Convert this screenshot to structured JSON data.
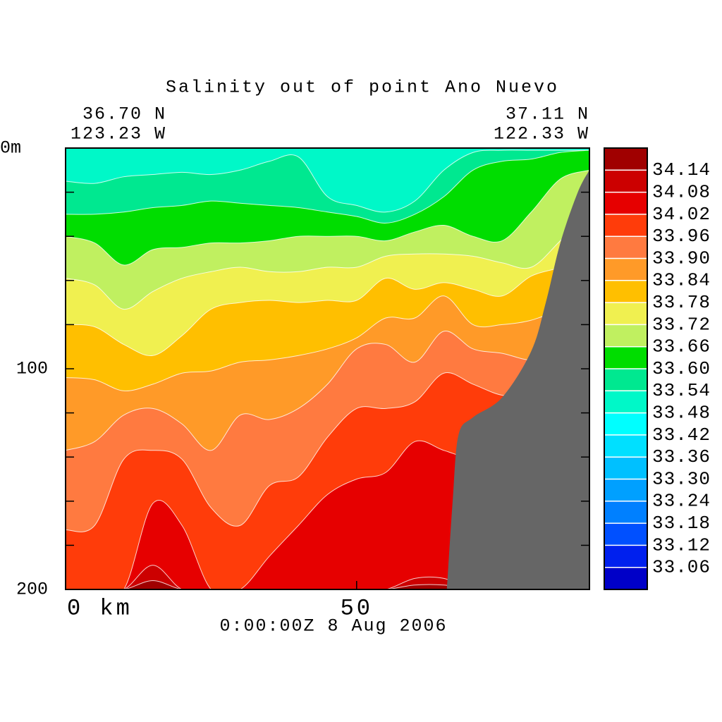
{
  "chart_data": {
    "type": "contour",
    "title": "Salinity out of point Ano Nuevo",
    "corner_labels": {
      "left_lat": "36.70 N",
      "left_lon": "123.23 W",
      "right_lat": "37.11 N",
      "right_lon": "122.33 W"
    },
    "time_label": "0:00:00Z   8 Aug 2006",
    "xlim": [
      0,
      90
    ],
    "xticks": [
      {
        "value": 0,
        "label": "0 km"
      },
      50
    ],
    "ylim": [
      0,
      200
    ],
    "yticks": [
      {
        "value": 0,
        "label": "0m"
      },
      100,
      200
    ],
    "y_minor_ticks": [
      20,
      40,
      60,
      80,
      120,
      140,
      160,
      180
    ],
    "x": [
      0,
      5,
      10,
      15,
      20,
      25,
      30,
      35,
      40,
      45,
      50,
      55,
      60,
      65,
      70,
      75,
      80,
      85,
      90
    ],
    "base_level": 33.48,
    "contours": [
      {
        "level": 33.54,
        "depths": [
          15,
          16,
          13,
          12,
          11,
          12,
          10,
          6,
          4,
          22,
          26,
          29,
          24,
          10,
          2,
          1,
          1,
          1,
          1
        ]
      },
      {
        "level": 33.6,
        "depths": [
          30,
          30,
          29,
          27,
          26,
          24,
          25,
          26,
          27,
          29,
          31,
          34,
          30,
          22,
          10,
          6,
          5,
          2,
          1
        ]
      },
      {
        "level": 33.66,
        "depths": [
          40,
          43,
          53,
          46,
          45,
          43,
          43,
          42,
          40,
          40,
          40,
          42,
          38,
          35,
          40,
          42,
          29,
          14,
          10
        ]
      },
      {
        "level": 33.72,
        "depths": [
          59,
          62,
          73,
          65,
          59,
          56,
          54,
          56,
          56,
          54,
          54,
          49,
          48,
          48,
          49,
          52,
          54,
          42,
          29
        ]
      },
      {
        "level": 33.78,
        "depths": [
          80,
          81,
          89,
          94,
          85,
          73,
          70,
          69,
          70,
          69,
          69,
          59,
          64,
          61,
          64,
          67,
          58,
          54,
          48
        ]
      },
      {
        "level": 33.84,
        "depths": [
          104,
          105,
          110,
          107,
          102,
          101,
          97,
          96,
          94,
          91,
          86,
          77,
          77,
          67,
          80,
          80,
          78,
          73,
          67
        ]
      },
      {
        "level": 33.9,
        "depths": [
          137,
          133,
          121,
          118,
          125,
          137,
          121,
          123,
          118,
          107,
          91,
          89,
          97,
          83,
          91,
          93,
          96,
          93,
          86
        ]
      },
      {
        "level": 33.96,
        "depths": [
          173,
          171,
          141,
          137,
          141,
          163,
          171,
          153,
          149,
          131,
          118,
          118,
          115,
          102,
          107,
          112,
          112,
          105,
          99
        ]
      },
      {
        "level": 34.02,
        "depths": [
          200,
          200,
          200,
          161,
          171,
          200,
          200,
          185,
          171,
          157,
          150,
          147,
          133,
          137,
          141,
          141,
          141,
          141,
          141
        ]
      },
      {
        "level": 34.08,
        "depths": [
          200,
          200,
          200,
          189,
          200,
          200,
          200,
          200,
          200,
          200,
          200,
          200,
          195,
          195,
          200,
          200,
          200,
          200,
          200
        ]
      },
      {
        "level": 34.14,
        "depths": [
          200,
          200,
          200,
          196,
          200,
          200,
          200,
          200,
          200,
          200,
          200,
          200,
          198,
          198,
          200,
          200,
          200,
          200,
          200
        ]
      }
    ],
    "land": {
      "color": "#666666",
      "x": [
        65.5,
        66.5,
        67.5,
        70,
        75,
        80,
        82.5,
        85,
        88,
        90
      ],
      "depths": [
        200,
        160,
        130,
        122,
        113,
        92,
        70,
        43,
        20,
        10
      ]
    },
    "colorbar": {
      "levels": [
        34.14,
        34.08,
        34.02,
        33.96,
        {
          "value": 33.9,
          "label": "33.90"
        },
        33.84,
        33.78,
        33.72,
        33.66,
        {
          "value": 33.6,
          "label": "33.60"
        },
        33.54,
        33.48,
        33.42,
        33.36,
        {
          "value": 33.3,
          "label": "33.30"
        },
        33.24,
        33.18,
        33.12,
        33.06
      ],
      "colors": [
        "#a00000",
        "#cc0000",
        "#e60000",
        "#ff3c0a",
        "#ff7a40",
        "#ff9a28",
        "#ffbf00",
        "#f0f050",
        "#c0f060",
        "#00dd00",
        "#00e890",
        "#00f8c8",
        "#00ffff",
        "#00e0ff",
        "#00c0ff",
        "#00a0ff",
        "#0080ff",
        "#0050ff",
        "#0020ee",
        "#0000c8"
      ]
    }
  }
}
